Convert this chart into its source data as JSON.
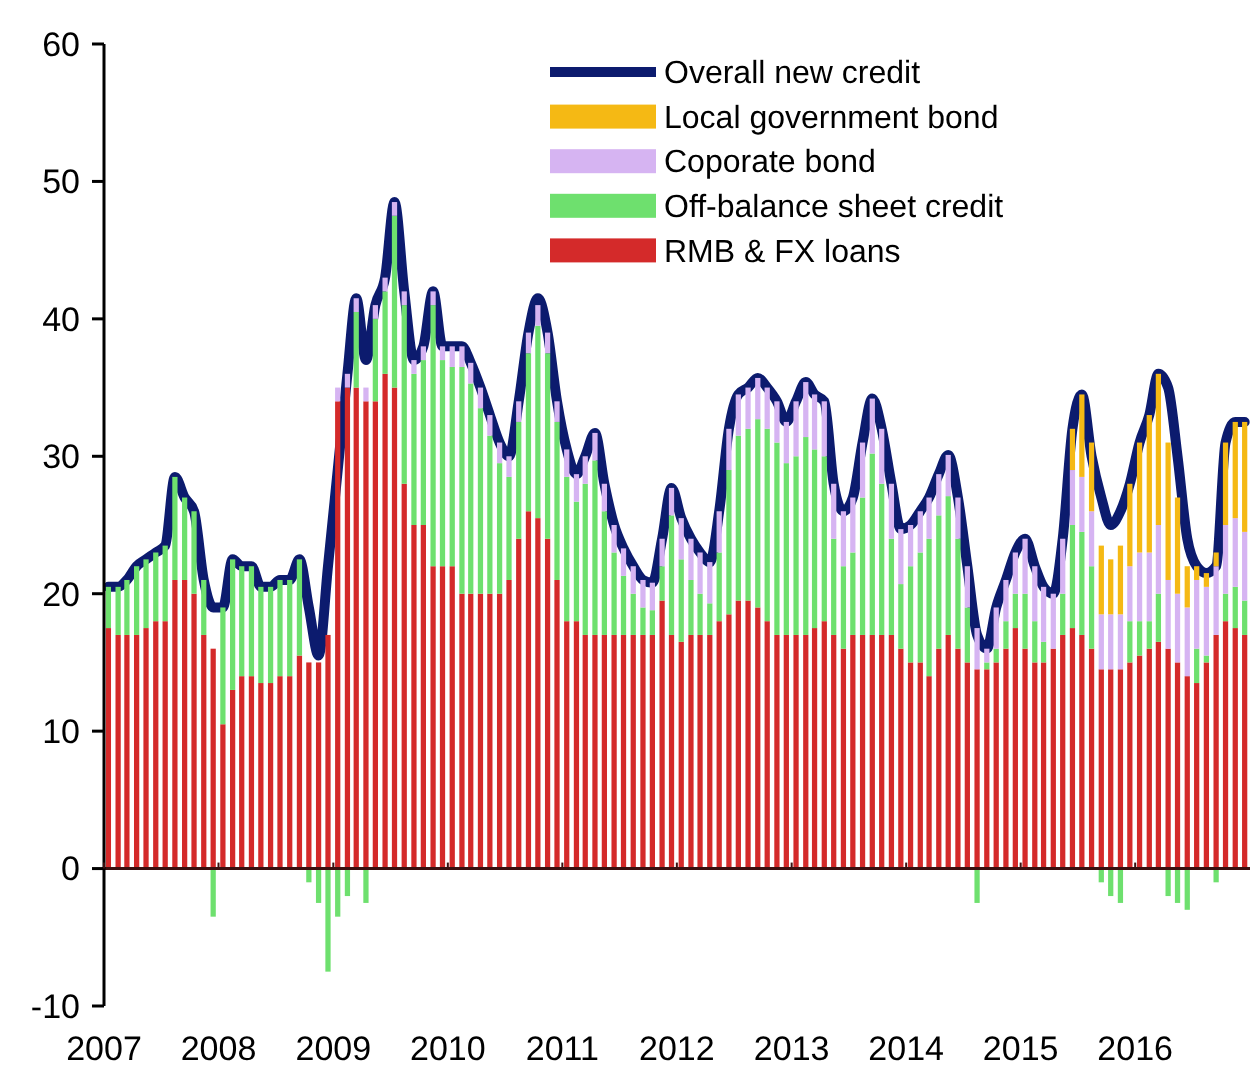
{
  "chart_data": {
    "type": "bar",
    "stacked": true,
    "legend": "top right",
    "x": [
      "2007-01",
      "2007-02",
      "2007-03",
      "2007-04",
      "2007-05",
      "2007-06",
      "2007-07",
      "2007-08",
      "2007-09",
      "2007-10",
      "2007-11",
      "2007-12",
      "2008-01",
      "2008-02",
      "2008-03",
      "2008-04",
      "2008-05",
      "2008-06",
      "2008-07",
      "2008-08",
      "2008-09",
      "2008-10",
      "2008-11",
      "2008-12",
      "2009-01",
      "2009-02",
      "2009-03",
      "2009-04",
      "2009-05",
      "2009-06",
      "2009-07",
      "2009-08",
      "2009-09",
      "2009-10",
      "2009-11",
      "2009-12",
      "2010-01",
      "2010-02",
      "2010-03",
      "2010-04",
      "2010-05",
      "2010-06",
      "2010-07",
      "2010-08",
      "2010-09",
      "2010-10",
      "2010-11",
      "2010-12",
      "2011-01",
      "2011-02",
      "2011-03",
      "2011-04",
      "2011-05",
      "2011-06",
      "2011-07",
      "2011-08",
      "2011-09",
      "2011-10",
      "2011-11",
      "2011-12",
      "2012-01",
      "2012-02",
      "2012-03",
      "2012-04",
      "2012-05",
      "2012-06",
      "2012-07",
      "2012-08",
      "2012-09",
      "2012-10",
      "2012-11",
      "2012-12",
      "2013-01",
      "2013-02",
      "2013-03",
      "2013-04",
      "2013-05",
      "2013-06",
      "2013-07",
      "2013-08",
      "2013-09",
      "2013-10",
      "2013-11",
      "2013-12",
      "2014-01",
      "2014-02",
      "2014-03",
      "2014-04",
      "2014-05",
      "2014-06",
      "2014-07",
      "2014-08",
      "2014-09",
      "2014-10",
      "2014-11",
      "2014-12",
      "2015-01",
      "2015-02",
      "2015-03",
      "2015-04",
      "2015-05",
      "2015-06",
      "2015-07",
      "2015-08",
      "2015-09",
      "2015-10",
      "2015-11",
      "2015-12",
      "2016-01",
      "2016-02",
      "2016-03",
      "2016-04",
      "2016-05",
      "2016-06",
      "2016-07",
      "2016-08",
      "2016-09",
      "2016-10",
      "2016-11",
      "2016-12"
    ],
    "xlim": [
      "2007-01-01",
      "2017-01-01"
    ],
    "xticks": [
      "2007",
      "2008",
      "2009",
      "2010",
      "2011",
      "2012",
      "2013",
      "2014",
      "2015",
      "2016"
    ],
    "ylim": [
      -10,
      60
    ],
    "yticks": [
      -10,
      0,
      10,
      20,
      30,
      40,
      50,
      60
    ],
    "series": [
      {
        "name": "RMB & FX loans",
        "color": "#d42a2a",
        "values": [
          17.5,
          17,
          17,
          17,
          17.5,
          18,
          18,
          21,
          21,
          20,
          17,
          16,
          10.5,
          13,
          14,
          14,
          13.5,
          13.5,
          14,
          14,
          15.5,
          15,
          15,
          17,
          34,
          35,
          35,
          34,
          34,
          36,
          35,
          28,
          25,
          25,
          22,
          22,
          22,
          20,
          20,
          20,
          20,
          20,
          21,
          24,
          26,
          25.5,
          24,
          21,
          18,
          18,
          17,
          17,
          17,
          17,
          17,
          17,
          17,
          17,
          19.5,
          17,
          16.5,
          17,
          17,
          17,
          18,
          18.5,
          19.5,
          19.5,
          19,
          18,
          17,
          17,
          17,
          17,
          17.5,
          18,
          17,
          16,
          17,
          17,
          17,
          17,
          17,
          16,
          15,
          15,
          14,
          16,
          17,
          16,
          15,
          14.5,
          14.5,
          15,
          16,
          17.5,
          16,
          15,
          15,
          16,
          17,
          17.5,
          17,
          16,
          14.5,
          14.5,
          14.5,
          15,
          15.5,
          16,
          16.5,
          16,
          15,
          14,
          13.5,
          15,
          17,
          18,
          17.5,
          17
        ]
      },
      {
        "name": "Off-balance sheet credit",
        "color": "#6ee06e",
        "values": [
          3,
          3.5,
          4,
          5,
          5,
          5,
          5.5,
          7.5,
          6,
          6,
          4,
          -3.5,
          8.5,
          9.5,
          8,
          8,
          7,
          7,
          7,
          7,
          7,
          -1,
          -2.5,
          -7.5,
          -3.5,
          -2,
          5.5,
          -2.5,
          6,
          6,
          12.5,
          13,
          11,
          12,
          19,
          15,
          14.5,
          16.5,
          15.3,
          13.5,
          11.5,
          9.5,
          7.5,
          8.5,
          11.5,
          14,
          13.5,
          11.5,
          10.5,
          8.7,
          11,
          12.7,
          9,
          6,
          4.3,
          3,
          2,
          1.8,
          2.5,
          8.7,
          6,
          4,
          3,
          2.3,
          5,
          10.5,
          12,
          12.5,
          13.7,
          14,
          14,
          12.5,
          13,
          14.4,
          13,
          12,
          7,
          6,
          6,
          10,
          13.2,
          11,
          7,
          4.7,
          7,
          8,
          10,
          9.7,
          10.1,
          8,
          4,
          -2.5,
          0.5,
          1,
          2,
          2.5,
          4,
          3,
          1.5,
          0,
          3,
          7.5,
          7.5,
          6,
          -1,
          -2,
          -2.5,
          3,
          2.5,
          2,
          3.5,
          -2,
          -2.5,
          -3,
          2.5,
          0.5,
          -1,
          2,
          3,
          2.5
        ]
      },
      {
        "name": "Coporate bond",
        "color": "#d6b4f2",
        "values": [
          0,
          0,
          0,
          0,
          0,
          0,
          0,
          0,
          0,
          0,
          0,
          0,
          0,
          0,
          0,
          0,
          0,
          0,
          0,
          0,
          0,
          0,
          0,
          0,
          1,
          1,
          1,
          1,
          1,
          1,
          1,
          1,
          1,
          1,
          1,
          1,
          1.5,
          1.5,
          1.5,
          1.5,
          1.5,
          1.5,
          1.5,
          1.5,
          1.5,
          1.5,
          1.5,
          1.5,
          2,
          2,
          2,
          2,
          2,
          2,
          2,
          2,
          2,
          2,
          2,
          2,
          3,
          3,
          3,
          3,
          3,
          3,
          3,
          3,
          3,
          3,
          3,
          3,
          4,
          4,
          4,
          4,
          4,
          4,
          4,
          4,
          4,
          4,
          4,
          4,
          3,
          3,
          3,
          3,
          3,
          3,
          3,
          3,
          1,
          3,
          3,
          3,
          4,
          4,
          4,
          4,
          4,
          4,
          4,
          4,
          4,
          4,
          4,
          4,
          5,
          5,
          5,
          5,
          5,
          5,
          5,
          5,
          5,
          5,
          5,
          5
        ]
      },
      {
        "name": "Local government bond",
        "color": "#f5b914",
        "values": [
          0,
          0,
          0,
          0,
          0,
          0,
          0,
          0,
          0,
          0,
          0,
          0,
          0,
          0,
          0,
          0,
          0,
          0,
          0,
          0,
          0,
          0,
          0,
          0,
          0,
          0,
          0,
          0,
          0,
          0,
          0,
          0,
          0,
          0,
          0,
          0,
          0,
          0,
          0,
          0,
          0,
          0,
          0,
          0,
          0,
          0,
          0,
          0,
          0,
          0,
          0,
          0,
          0,
          0,
          0,
          0,
          0,
          0,
          0,
          0,
          0,
          0,
          0,
          0,
          0,
          0,
          0,
          0,
          0,
          0,
          0,
          0,
          0,
          0,
          0,
          0,
          0,
          0,
          0,
          0,
          0,
          0,
          0,
          0,
          0,
          0,
          0,
          0,
          0,
          0,
          0,
          0,
          0,
          0,
          0,
          0,
          0,
          0,
          0,
          0,
          0,
          3,
          6,
          5,
          5,
          4,
          5,
          6,
          8,
          10,
          11,
          10,
          7,
          3,
          1,
          1,
          1,
          6,
          7,
          8
        ]
      },
      {
        "name": "Overall new credit",
        "type": "line",
        "color": "#0c1b6e",
        "values": [
          20.5,
          20.5,
          21,
          22,
          22.5,
          23,
          23.5,
          28.5,
          27,
          26,
          21,
          19,
          19,
          22.5,
          22,
          22,
          20.5,
          20.5,
          21,
          21,
          22.5,
          19,
          15.5,
          22,
          29,
          36,
          41.5,
          37,
          41,
          43,
          48.5,
          42,
          37,
          38,
          42,
          38,
          38,
          38,
          36.8,
          35,
          33,
          31,
          30,
          34,
          39,
          41.5,
          39,
          34,
          30.5,
          28.7,
          30,
          31.7,
          28,
          25,
          23.3,
          22,
          21,
          20.8,
          24,
          27.7,
          25.5,
          24,
          23,
          22.3,
          26,
          32,
          34.5,
          35,
          35.7,
          35,
          34,
          32.5,
          34,
          35.4,
          34.5,
          34,
          28,
          26,
          27,
          31,
          34.2,
          32,
          28,
          24.7,
          25,
          26,
          27,
          28.7,
          30.1,
          27,
          22,
          17,
          16,
          19,
          21,
          23,
          24,
          22,
          20.5,
          20,
          24,
          32,
          34.5,
          30,
          27,
          25,
          26,
          28,
          31,
          33,
          36,
          35,
          30,
          24,
          22,
          21.5,
          22,
          31,
          32.5,
          32.5
        ]
      }
    ]
  }
}
